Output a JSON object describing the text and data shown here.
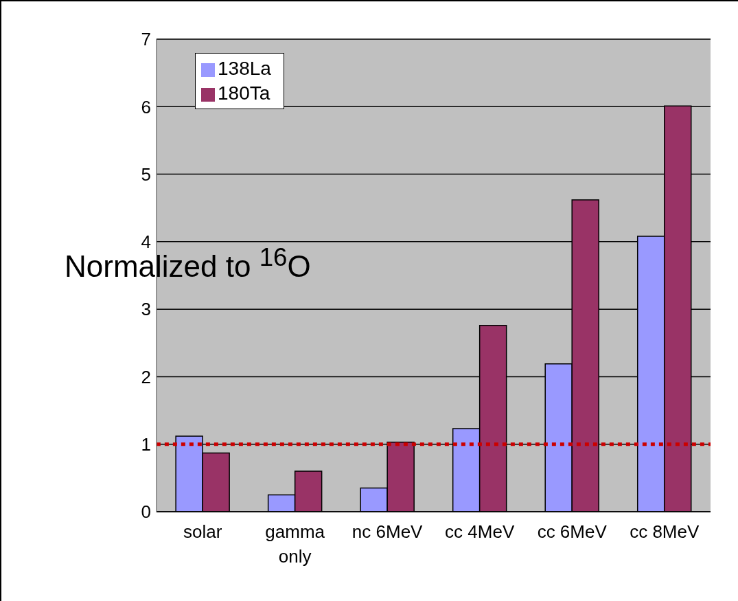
{
  "chart_data": {
    "type": "bar",
    "categories": [
      "solar",
      "gamma only",
      "nc 6MeV",
      "cc 4MeV",
      "cc 6MeV",
      "cc 8MeV"
    ],
    "series": [
      {
        "name": "138La",
        "color": "#9999ff",
        "values": [
          1.12,
          0.25,
          0.35,
          1.23,
          2.19,
          4.08
        ]
      },
      {
        "name": "180Ta",
        "color": "#993366",
        "values": [
          0.87,
          0.6,
          1.03,
          2.76,
          4.62,
          6.01
        ]
      }
    ],
    "ylim": [
      0,
      7
    ],
    "yticks": [
      0,
      1,
      2,
      3,
      4,
      5,
      6,
      7
    ],
    "grid": "y",
    "legend": "top left",
    "ref_lines": [
      {
        "axis": "y",
        "value": 1,
        "color": "#cc0000",
        "line_style": "dotted"
      }
    ],
    "annotations": [
      "Normalized to $^{16}$O"
    ]
  }
}
